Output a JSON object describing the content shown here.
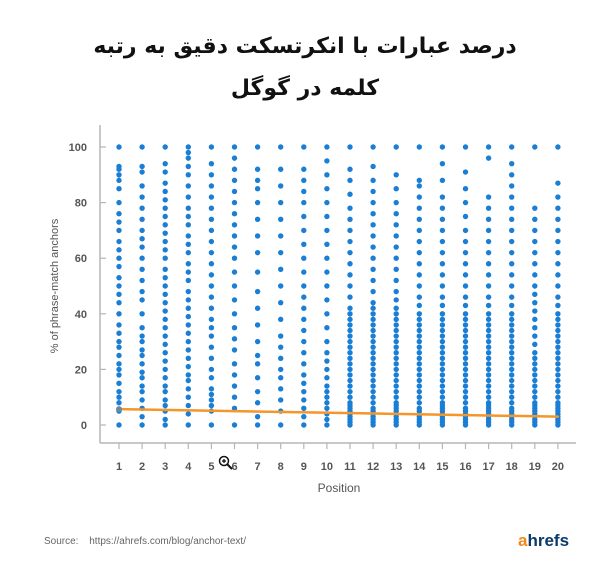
{
  "title_line1": "درصد عبارات با انکرتسکت دقیق به رتبه",
  "title_line2": "کلمه در گوگل",
  "source_label": "Source:",
  "source_url": "https://ahrefs.com/blog/anchor-text/",
  "logo": {
    "accent": "a",
    "rest": "hrefs"
  },
  "colors": {
    "dots": "#1a7fd4",
    "trend": "#f4962a",
    "axis": "#b5b5b5",
    "text": "#555555"
  },
  "chart_data": {
    "type": "scatter",
    "xlabel": "Position",
    "ylabel": "% of phrase-match anchors",
    "x_ticks": [
      "1",
      "2",
      "3",
      "4",
      "5",
      "6",
      "7",
      "8",
      "9",
      "10",
      "11",
      "12",
      "13",
      "14",
      "15",
      "16",
      "17",
      "18",
      "19",
      "20"
    ],
    "y_ticks": [
      "0",
      "20",
      "40",
      "60",
      "80",
      "100"
    ],
    "xlim": [
      1,
      20
    ],
    "ylim": [
      0,
      100
    ],
    "grid": false,
    "trend_line": {
      "x": [
        1,
        20
      ],
      "y": [
        5.7,
        3
      ]
    },
    "columns": [
      {
        "x": 1,
        "y": [
          0,
          5,
          8,
          10,
          12,
          15,
          18,
          20,
          22,
          25,
          28,
          30,
          33,
          36,
          40,
          44,
          47,
          50,
          53,
          57,
          60,
          63,
          66,
          70,
          73,
          76,
          80,
          85,
          88,
          90,
          92,
          93,
          100
        ]
      },
      {
        "x": 2,
        "y": [
          0,
          3,
          6,
          9,
          12,
          14,
          17,
          19,
          22,
          25,
          27,
          30,
          32,
          35,
          40,
          45,
          48,
          52,
          56,
          60,
          64,
          67,
          70,
          74,
          78,
          82,
          86,
          91,
          93,
          100
        ]
      },
      {
        "x": 3,
        "y": [
          0,
          2,
          5,
          7,
          9,
          12,
          14,
          17,
          20,
          23,
          26,
          29,
          32,
          35,
          38,
          41,
          44,
          47,
          50,
          53,
          56,
          60,
          63,
          66,
          69,
          72,
          75,
          78,
          81,
          84,
          87,
          91,
          94,
          100
        ]
      },
      {
        "x": 4,
        "y": [
          0,
          4,
          7,
          10,
          13,
          16,
          18,
          21,
          24,
          27,
          30,
          33,
          36,
          39,
          42,
          45,
          48,
          52,
          55,
          58,
          62,
          65,
          68,
          72,
          75,
          78,
          82,
          86,
          90,
          93,
          96,
          98,
          100
        ]
      },
      {
        "x": 5,
        "y": [
          0,
          5,
          7,
          9,
          11,
          13,
          17,
          20,
          24,
          28,
          32,
          35,
          38,
          42,
          46,
          50,
          54,
          58,
          62,
          66,
          70,
          74,
          78,
          82,
          86,
          90,
          94,
          100
        ]
      },
      {
        "x": 6,
        "y": [
          0,
          6,
          10,
          14,
          18,
          22,
          27,
          31,
          35,
          40,
          45,
          50,
          55,
          60,
          64,
          68,
          72,
          76,
          80,
          84,
          88,
          92,
          96,
          100
        ]
      },
      {
        "x": 7,
        "y": [
          0,
          3,
          8,
          12,
          17,
          22,
          25,
          30,
          36,
          42,
          48,
          55,
          62,
          68,
          74,
          80,
          85,
          88,
          92,
          100
        ]
      },
      {
        "x": 8,
        "y": [
          0,
          5,
          9,
          13,
          17,
          20,
          24,
          28,
          32,
          38,
          44,
          50,
          56,
          62,
          68,
          74,
          80,
          86,
          92,
          100
        ]
      },
      {
        "x": 9,
        "y": [
          0,
          3,
          6,
          9,
          12,
          15,
          18,
          22,
          26,
          30,
          34,
          38,
          42,
          46,
          50,
          55,
          60,
          65,
          70,
          75,
          80,
          84,
          88,
          92,
          100
        ]
      },
      {
        "x": 10,
        "y": [
          0,
          2,
          4,
          6,
          8,
          10,
          12,
          14,
          17,
          20,
          23,
          26,
          30,
          35,
          40,
          45,
          50,
          55,
          60,
          65,
          70,
          75,
          80,
          85,
          90,
          95,
          100
        ]
      },
      {
        "x": 11,
        "y": [
          0,
          1,
          2,
          3,
          4,
          5,
          6,
          7,
          8,
          10,
          12,
          14,
          16,
          18,
          20,
          22,
          24,
          26,
          28,
          30,
          32,
          34,
          36,
          38,
          40,
          42,
          46,
          50,
          54,
          58,
          62,
          66,
          70,
          74,
          78,
          83,
          88,
          92,
          100
        ]
      },
      {
        "x": 12,
        "y": [
          0,
          1,
          2,
          3,
          4,
          5,
          6,
          8,
          10,
          12,
          14,
          16,
          18,
          20,
          22,
          24,
          26,
          28,
          30,
          32,
          34,
          36,
          38,
          40,
          42,
          44,
          48,
          52,
          56,
          60,
          64,
          68,
          72,
          76,
          80,
          84,
          88,
          93,
          100
        ]
      },
      {
        "x": 13,
        "y": [
          0,
          1,
          2,
          3,
          4,
          5,
          6,
          7,
          8,
          10,
          12,
          14,
          16,
          18,
          20,
          22,
          24,
          26,
          28,
          30,
          32,
          34,
          36,
          38,
          40,
          42,
          45,
          48,
          52,
          56,
          60,
          64,
          68,
          72,
          76,
          80,
          85,
          90,
          100
        ]
      },
      {
        "x": 14,
        "y": [
          0,
          1,
          2,
          3,
          4,
          5,
          6,
          8,
          10,
          12,
          14,
          16,
          18,
          20,
          22,
          24,
          26,
          28,
          30,
          32,
          34,
          36,
          38,
          40,
          43,
          46,
          50,
          54,
          58,
          62,
          66,
          70,
          74,
          78,
          82,
          86,
          88,
          100
        ]
      },
      {
        "x": 15,
        "y": [
          0,
          1,
          2,
          3,
          4,
          5,
          6,
          7,
          8,
          10,
          12,
          14,
          16,
          18,
          20,
          22,
          24,
          26,
          28,
          30,
          32,
          34,
          36,
          38,
          40,
          43,
          46,
          50,
          54,
          58,
          62,
          66,
          70,
          74,
          78,
          82,
          88,
          94,
          100
        ]
      },
      {
        "x": 16,
        "y": [
          0,
          1,
          2,
          3,
          4,
          5,
          6,
          8,
          10,
          12,
          14,
          16,
          18,
          20,
          22,
          24,
          26,
          28,
          30,
          32,
          34,
          36,
          38,
          40,
          43,
          46,
          50,
          54,
          58,
          62,
          66,
          70,
          75,
          80,
          85,
          91,
          100
        ]
      },
      {
        "x": 17,
        "y": [
          0,
          1,
          2,
          3,
          4,
          5,
          6,
          7,
          8,
          10,
          12,
          14,
          16,
          18,
          20,
          22,
          24,
          26,
          28,
          30,
          32,
          34,
          36,
          38,
          40,
          43,
          46,
          50,
          54,
          58,
          62,
          66,
          70,
          74,
          78,
          82,
          96,
          100
        ]
      },
      {
        "x": 18,
        "y": [
          0,
          1,
          2,
          3,
          4,
          5,
          6,
          8,
          10,
          12,
          14,
          16,
          18,
          20,
          22,
          24,
          26,
          28,
          30,
          32,
          34,
          36,
          38,
          40,
          43,
          46,
          50,
          54,
          58,
          62,
          66,
          70,
          74,
          78,
          82,
          86,
          90,
          94,
          100
        ]
      },
      {
        "x": 19,
        "y": [
          0,
          1,
          2,
          3,
          4,
          5,
          6,
          7,
          8,
          10,
          12,
          14,
          16,
          18,
          20,
          22,
          24,
          26,
          29,
          32,
          35,
          38,
          41,
          44,
          47,
          50,
          54,
          58,
          62,
          66,
          70,
          74,
          78,
          100
        ]
      },
      {
        "x": 20,
        "y": [
          0,
          1,
          2,
          3,
          4,
          5,
          6,
          7,
          8,
          10,
          12,
          14,
          16,
          18,
          20,
          22,
          24,
          26,
          28,
          30,
          32,
          34,
          36,
          38,
          40,
          43,
          46,
          50,
          54,
          58,
          62,
          66,
          70,
          74,
          78,
          82,
          87,
          100
        ]
      }
    ]
  }
}
